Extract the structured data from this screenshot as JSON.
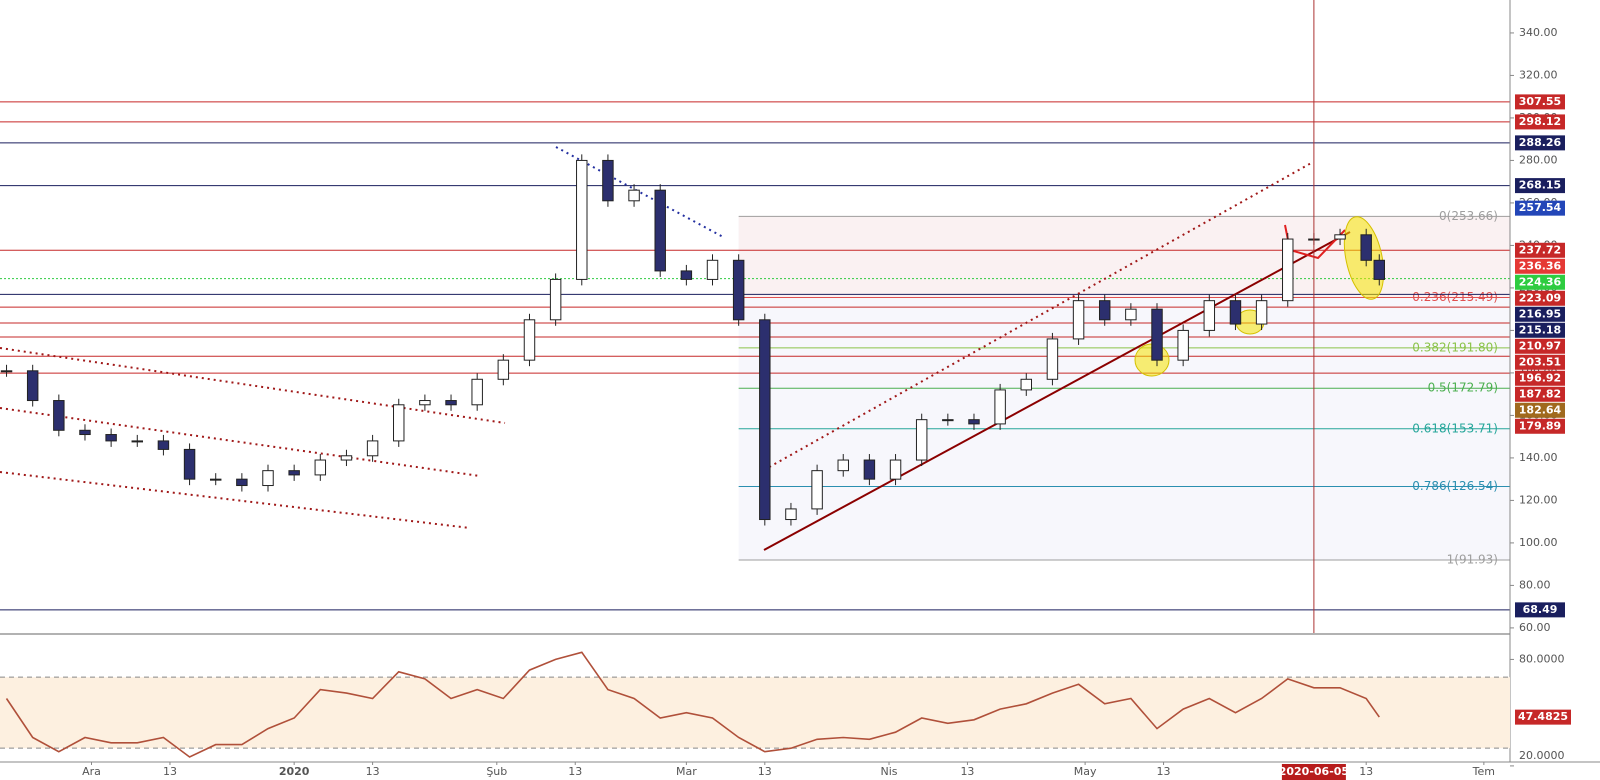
{
  "chart_data": {
    "type": "candlestick",
    "x": [
      "2019-11-18",
      "2019-11-22",
      "2019-11-26",
      "2019-11-30",
      "2019-12-04",
      "2019-12-08",
      "2019-12-12",
      "2019-12-16",
      "2019-12-20",
      "2019-12-24",
      "2019-12-28",
      "2020-01-01",
      "2020-01-05",
      "2020-01-09",
      "2020-01-13",
      "2020-01-17",
      "2020-01-21",
      "2020-01-25",
      "2020-01-29",
      "2020-02-02",
      "2020-02-06",
      "2020-02-10",
      "2020-02-14",
      "2020-02-18",
      "2020-02-22",
      "2020-02-26",
      "2020-03-01",
      "2020-03-05",
      "2020-03-09",
      "2020-03-13",
      "2020-03-17",
      "2020-03-21",
      "2020-03-25",
      "2020-03-29",
      "2020-04-02",
      "2020-04-06",
      "2020-04-10",
      "2020-04-14",
      "2020-04-18",
      "2020-04-22",
      "2020-04-26",
      "2020-04-30",
      "2020-05-04",
      "2020-05-08",
      "2020-05-12",
      "2020-05-16",
      "2020-05-20",
      "2020-05-24",
      "2020-05-28",
      "2020-06-01",
      "2020-06-05",
      "2020-06-09",
      "2020-06-13",
      "2020-06-15"
    ],
    "values": [
      181,
      167,
      153,
      151,
      148,
      148,
      144,
      130,
      130,
      127,
      134,
      132,
      139,
      141,
      148,
      165,
      167,
      165,
      177,
      186,
      205,
      224,
      280,
      261,
      266,
      228,
      224,
      233,
      205,
      111,
      116,
      134,
      139,
      130,
      139,
      158,
      158,
      156,
      172,
      177,
      196,
      214,
      205,
      210,
      186,
      200,
      214,
      203,
      214,
      243,
      243,
      245,
      233,
      224
    ],
    "up_color": "#ffffff",
    "down_color": "#2c2f6e",
    "xlim": [
      "2019-11-17",
      "2020-07-05"
    ],
    "xticks": [
      {
        "value": "2019-12-01",
        "label": "Ara"
      },
      {
        "value": "2019-12-13",
        "label": "13"
      },
      {
        "value": "2020-01-01",
        "label": "2020"
      },
      {
        "value": "2020-01-13",
        "label": "13"
      },
      {
        "value": "2020-02-01",
        "label": "Şub"
      },
      {
        "value": "2020-02-13",
        "label": "13"
      },
      {
        "value": "2020-03-01",
        "label": "Mar"
      },
      {
        "value": "2020-03-13",
        "label": "13"
      },
      {
        "value": "2020-04-01",
        "label": "Nis"
      },
      {
        "value": "2020-04-13",
        "label": "13"
      },
      {
        "value": "2020-05-01",
        "label": "May"
      },
      {
        "value": "2020-05-13",
        "label": "13"
      },
      {
        "value": "2020-06-13",
        "label": "13"
      },
      {
        "value": "2020-07-01",
        "label": "Tem"
      }
    ],
    "ylim": [
      57.6,
      355.5
    ],
    "yticks": [
      {
        "value": 60,
        "label": "60.00"
      },
      {
        "value": 80,
        "label": "80.00"
      },
      {
        "value": 100,
        "label": "100.00"
      },
      {
        "value": 120,
        "label": "120.00"
      },
      {
        "value": 140,
        "label": "140.00"
      },
      {
        "value": 160,
        "label": "160.00"
      },
      {
        "value": 180,
        "label": "180.00"
      },
      {
        "value": 200,
        "label": "200.00"
      },
      {
        "value": 220,
        "label": "220.00"
      },
      {
        "value": 240,
        "label": "240.00"
      },
      {
        "value": 260,
        "label": "260.00"
      },
      {
        "value": 280,
        "label": "280.00"
      },
      {
        "value": 300,
        "label": "300.00"
      },
      {
        "value": 320,
        "label": "320.00"
      },
      {
        "value": 340,
        "label": "340.00"
      }
    ],
    "levels": [
      {
        "value": 307.55,
        "color": "#c62828",
        "line": true
      },
      {
        "value": 298.12,
        "color": "#c62828",
        "line": true
      },
      {
        "value": 288.26,
        "color": "#1a1f5e",
        "line": true
      },
      {
        "value": 268.15,
        "color": "#1a1f5e",
        "line": true
      },
      {
        "value": 257.54,
        "color": "#2346b8",
        "line": false
      },
      {
        "value": 237.72,
        "color": "#c62828",
        "line": true
      },
      {
        "value": 236.36,
        "color": "#e53935",
        "line": false
      },
      {
        "value": 224.36,
        "color": "#2ecc40",
        "line": true
      },
      {
        "value": 223.09,
        "color": "#c62828",
        "line": false
      },
      {
        "value": 216.95,
        "color": "#1a1f5e",
        "line": true
      },
      {
        "value": 215.18,
        "color": "#1a1f5e",
        "line": false
      },
      {
        "value": 210.97,
        "color": "#c62828",
        "line": true
      },
      {
        "value": 203.51,
        "color": "#c62828",
        "line": true
      },
      {
        "value": 196.92,
        "color": "#c62828",
        "line": true
      },
      {
        "value": 187.82,
        "color": "#c62828",
        "line": true
      },
      {
        "value": 182.64,
        "color": "#a0691e",
        "line": false
      },
      {
        "value": 179.89,
        "color": "#c62828",
        "line": true
      },
      {
        "value": 68.49,
        "color": "#1a1f5e",
        "line": true
      }
    ],
    "fib_levels": [
      {
        "value": 253.66,
        "label": "0(253.66)",
        "color": "#9e9e9e"
      },
      {
        "value": 215.49,
        "label": "0.236(215.49)",
        "color": "#e05050"
      },
      {
        "value": 191.8,
        "label": "0.382(191.80)",
        "color": "#8bc34a"
      },
      {
        "value": 172.79,
        "label": "0.5(172.79)",
        "color": "#4caf50"
      },
      {
        "value": 153.71,
        "label": "0.618(153.71)",
        "color": "#26a69a"
      },
      {
        "value": 126.54,
        "label": "0.786(126.54)",
        "color": "#2b8fb0"
      },
      {
        "value": 91.93,
        "label": "1(91.93)",
        "color": "#9e9e9e"
      }
    ],
    "fib_start": "2020-03-09",
    "crosshair": "2020-06-05",
    "indicator": {
      "type": "line",
      "color": "#b0503a",
      "values": [
        58,
        36,
        28,
        36,
        33,
        33,
        36,
        25,
        32,
        32,
        41,
        47,
        63,
        61,
        58,
        73,
        69,
        58,
        63,
        58,
        74,
        80,
        84,
        63,
        58,
        47,
        50,
        47,
        36,
        28,
        30,
        35,
        36,
        35,
        39,
        47,
        44,
        46,
        52,
        55,
        61,
        66,
        55,
        58,
        41,
        52,
        58,
        50,
        58,
        69,
        64,
        64,
        58,
        47.4825
      ],
      "ylim": [
        22.2,
        93.2
      ],
      "yticks": [
        {
          "value": 80,
          "label": "80.0000"
        },
        {
          "value": 20,
          "label": "20.0000"
        }
      ],
      "bands": [
        30,
        70
      ],
      "label_color": "#c62828"
    }
  }
}
